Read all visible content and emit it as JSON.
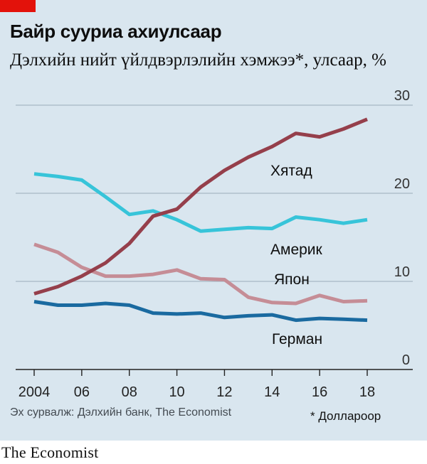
{
  "header": {
    "title": "Байр сууриа ахиулсаар",
    "subtitle": "Дэлхийн нийт үйлдвэрлэлийн хэмжээ*, улсаар, %"
  },
  "footer": {
    "source": "Эх сурвалж: Дэлхийн банк, The Economist",
    "footnote": "* Доллароор",
    "publisher": "The Economist"
  },
  "colors": {
    "background": "#d9e6ef",
    "brand_red": "#e3120b",
    "china": "#953f4b",
    "america": "#37c4d9",
    "japan": "#c58d96",
    "germany": "#1a6aa0"
  },
  "chart_data": {
    "type": "line",
    "title": "Байр сууриа ахиулсаар",
    "subtitle": "Дэлхийн нийт үйлдвэрлэлийн хэмжээ*, улсаар, %",
    "x": [
      2004,
      2005,
      2006,
      2007,
      2008,
      2009,
      2010,
      2011,
      2012,
      2013,
      2014,
      2015,
      2016,
      2017,
      2018
    ],
    "x_tick_values": [
      2004,
      2006,
      2008,
      2010,
      2012,
      2014,
      2016,
      2018
    ],
    "x_tick_labels": [
      "2004",
      "06",
      "08",
      "10",
      "12",
      "14",
      "16",
      "18"
    ],
    "y_ticks": [
      0,
      10,
      20,
      30
    ],
    "ylim": [
      0,
      30
    ],
    "xlim": [
      2004,
      2018
    ],
    "grid": true,
    "y_axis_position": "right",
    "series": [
      {
        "name": "Хятад",
        "color": "#953f4b",
        "values": [
          8.6,
          9.4,
          10.6,
          12.1,
          14.3,
          17.4,
          18.2,
          20.7,
          22.6,
          24.1,
          25.3,
          26.8,
          26.4,
          27.3,
          28.4
        ]
      },
      {
        "name": "Америк",
        "color": "#37c4d9",
        "values": [
          22.2,
          21.9,
          21.5,
          19.6,
          17.6,
          18.0,
          17.0,
          15.7,
          15.9,
          16.1,
          16.0,
          17.3,
          17.0,
          16.6,
          17.0
        ]
      },
      {
        "name": "Япон",
        "color": "#c58d96",
        "values": [
          14.2,
          13.3,
          11.6,
          10.6,
          10.6,
          10.8,
          11.3,
          10.3,
          10.2,
          8.2,
          7.6,
          7.5,
          8.4,
          7.7,
          7.8
        ]
      },
      {
        "name": "Герман",
        "color": "#1a6aa0",
        "values": [
          7.7,
          7.3,
          7.3,
          7.5,
          7.3,
          6.4,
          6.3,
          6.4,
          5.9,
          6.1,
          6.2,
          5.6,
          5.8,
          5.7,
          5.6
        ]
      }
    ]
  }
}
